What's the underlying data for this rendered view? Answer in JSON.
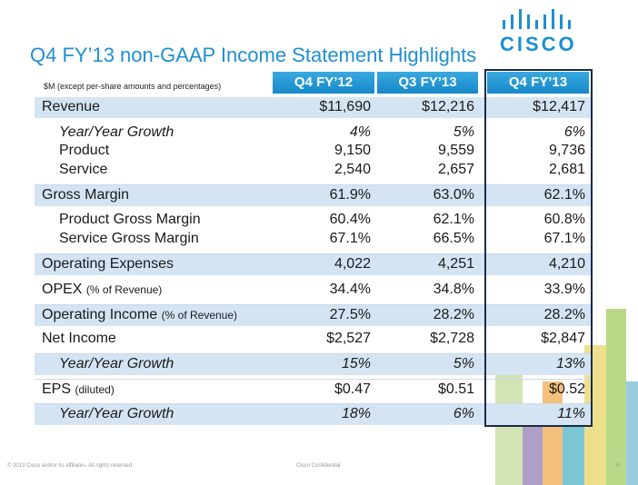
{
  "header": {
    "title": "Q4 FY’13 non-GAAP Income Statement Highlights",
    "logo": "CISCO"
  },
  "table": {
    "caption": "$M (except per-share amounts and percentages)",
    "columns": [
      "Q4 FY’12",
      "Q3 FY’13",
      "Q4 FY’13"
    ],
    "rows": [
      {
        "label": "Revenue",
        "values": [
          "$11,690",
          "$12,216",
          "$12,417"
        ]
      },
      {
        "label": "Year/Year Growth",
        "values": [
          "4%",
          "5%",
          "6%"
        ]
      },
      {
        "label": "Product",
        "values": [
          "9,150",
          "9,559",
          "9,736"
        ]
      },
      {
        "label": "Service",
        "values": [
          "2,540",
          "2,657",
          "2,681"
        ]
      },
      {
        "label": "Gross Margin",
        "values": [
          "61.9%",
          "63.0%",
          "62.1%"
        ]
      },
      {
        "label": "Product Gross Margin",
        "values": [
          "60.4%",
          "62.1%",
          "60.8%"
        ]
      },
      {
        "label": "Service Gross Margin",
        "values": [
          "67.1%",
          "66.5%",
          "67.1%"
        ]
      },
      {
        "label": "Operating Expenses",
        "values": [
          "4,022",
          "4,251",
          "4,210"
        ]
      },
      {
        "label": "OPEX",
        "note": "(% of Revenue)",
        "values": [
          "34.4%",
          "34.8%",
          "33.9%"
        ]
      },
      {
        "label": "Operating Income",
        "note": "(% of Revenue)",
        "values": [
          "27.5%",
          "28.2%",
          "28.2%"
        ]
      },
      {
        "label": "Net Income",
        "values": [
          "$2,527",
          "$2,728",
          "$2,847"
        ]
      },
      {
        "label": "Year/Year Growth",
        "values": [
          "15%",
          "5%",
          "13%"
        ]
      },
      {
        "label": "EPS",
        "note": "(diluted)",
        "values": [
          "$0.47",
          "$0.51",
          "$0.52"
        ]
      },
      {
        "label": "Year/Year Growth",
        "values": [
          "18%",
          "6%",
          "11%"
        ]
      }
    ]
  },
  "footer": {
    "copyright": "© 2013 Cisco and/or its affiliates. All rights reserved.",
    "confidential": "Cisco Confidential",
    "page": "9"
  }
}
